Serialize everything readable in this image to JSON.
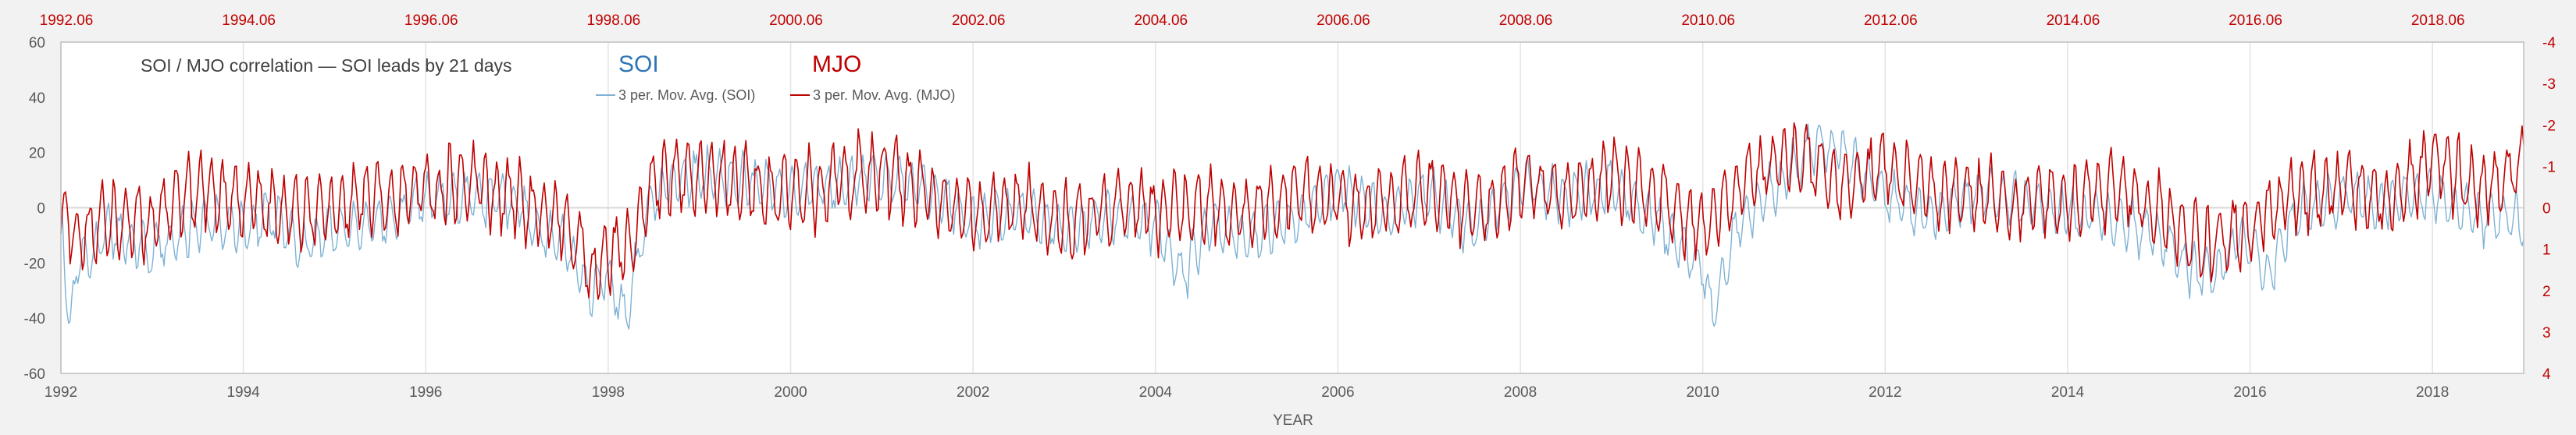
{
  "chart_data": {
    "type": "line",
    "title": "SOI / MJO correlation — SOI leads by 21 days",
    "xlabel": "YEAR",
    "x_range": [
      1992.0,
      2019.0
    ],
    "x_ticks": [
      "1992",
      "1994",
      "1996",
      "1998",
      "2000",
      "2002",
      "2004",
      "2006",
      "2008",
      "2010",
      "2012",
      "2014",
      "2016",
      "2018"
    ],
    "x_top_ticks": [
      "1992.06",
      "1994.06",
      "1996.06",
      "1998.06",
      "2000.06",
      "2002.06",
      "2004.06",
      "2006.06",
      "2008.06",
      "2010.06",
      "2012.06",
      "2014.06",
      "2016.06",
      "2018.06"
    ],
    "y_left": {
      "range": [
        -60,
        60
      ],
      "ticks": [
        "60",
        "40",
        "20",
        "0",
        "-20",
        "-40",
        "-60"
      ]
    },
    "y_right": {
      "range": [
        -4,
        4
      ],
      "inverted": true,
      "ticks": [
        "-4",
        "-3",
        "-2",
        "-1",
        "0",
        "1",
        "2",
        "3",
        "4"
      ]
    },
    "grid": "vertical",
    "legend": [
      {
        "label": "SOI",
        "series_label": "3 per. Mov. Avg. (SOI)",
        "color": "#2e75b6"
      },
      {
        "label": "MJO",
        "series_label": "3 per. Mov. Avg. (MJO)",
        "color": "#c00000"
      }
    ],
    "series": [
      {
        "name": "3 per. Mov. Avg. (SOI)",
        "axis": "left",
        "color": "#7fb2d4",
        "x": [
          1992.0,
          1992.1,
          1992.2,
          1992.3,
          1992.5,
          1992.7,
          1993.0,
          1993.3,
          1993.6,
          1994.0,
          1994.3,
          1994.6,
          1995.0,
          1995.5,
          1996.0,
          1996.5,
          1997.0,
          1997.2,
          1997.5,
          1997.8,
          1998.0,
          1998.2,
          1998.4,
          1998.6,
          1999.0,
          1999.5,
          2000.0,
          2000.5,
          2001.0,
          2001.5,
          2002.0,
          2002.5,
          2003.0,
          2003.5,
          2004.0,
          2004.3,
          2004.6,
          2005.0,
          2005.5,
          2006.0,
          2006.5,
          2007.0,
          2007.5,
          2008.0,
          2008.5,
          2009.0,
          2009.5,
          2010.0,
          2010.1,
          2010.4,
          2010.8,
          2011.0,
          2011.3,
          2011.6,
          2012.0,
          2012.5,
          2013.0,
          2013.5,
          2014.0,
          2014.5,
          2015.0,
          2015.3,
          2015.6,
          2015.9,
          2016.2,
          2016.5,
          2017.0,
          2017.5,
          2018.0,
          2018.5,
          2019.0
        ],
        "values": [
          -5,
          -45,
          -15,
          -18,
          -8,
          -12,
          -15,
          -10,
          -5,
          -8,
          -2,
          -14,
          -8,
          -5,
          3,
          5,
          2,
          -8,
          -12,
          -30,
          -25,
          -40,
          -5,
          8,
          12,
          10,
          5,
          8,
          12,
          6,
          -5,
          -2,
          -8,
          -3,
          -6,
          -25,
          -5,
          -10,
          -5,
          8,
          -3,
          6,
          -8,
          10,
          4,
          8,
          -5,
          -20,
          -40,
          -5,
          8,
          15,
          25,
          18,
          5,
          -3,
          6,
          2,
          -2,
          -4,
          -10,
          -20,
          -25,
          -10,
          -25,
          -3,
          4,
          2,
          5,
          -2,
          -5
        ]
      },
      {
        "name": "3 per. Mov. Avg. (MJO)",
        "axis": "right",
        "color": "#c00000",
        "x": [
          1992.0,
          1992.2,
          1992.5,
          1993.0,
          1993.5,
          1994.0,
          1994.5,
          1995.0,
          1995.5,
          1996.0,
          1996.5,
          1997.0,
          1997.5,
          1997.8,
          1998.0,
          1998.3,
          1998.5,
          1999.0,
          1999.5,
          2000.0,
          2000.5,
          2001.0,
          2001.5,
          2002.0,
          2002.5,
          2003.0,
          2003.5,
          2004.0,
          2004.5,
          2005.0,
          2005.5,
          2006.0,
          2006.5,
          2007.0,
          2007.5,
          2008.0,
          2008.5,
          2009.0,
          2009.5,
          2010.0,
          2010.5,
          2011.0,
          2011.5,
          2012.0,
          2012.5,
          2013.0,
          2013.5,
          2014.0,
          2014.5,
          2015.0,
          2015.5,
          2016.0,
          2016.5,
          2017.0,
          2017.5,
          2018.0,
          2018.5,
          2019.0
        ],
        "values": [
          0.0,
          0.8,
          0.2,
          0.3,
          -0.5,
          -0.2,
          0.1,
          0.0,
          -0.3,
          -0.4,
          -0.6,
          -0.2,
          0.3,
          1.5,
          1.2,
          0.8,
          -0.6,
          -0.8,
          -0.5,
          -0.3,
          -0.6,
          -0.9,
          -0.4,
          0.2,
          -0.1,
          0.4,
          0.0,
          0.1,
          0.0,
          0.2,
          -0.3,
          -0.2,
          0.0,
          -0.5,
          0.2,
          -0.6,
          -0.3,
          -0.8,
          -0.2,
          0.5,
          -0.8,
          -1.2,
          -0.6,
          -1.0,
          -0.4,
          -0.3,
          0.0,
          -0.2,
          -0.5,
          0.1,
          1.0,
          0.5,
          -0.3,
          -0.5,
          -0.1,
          -1.2,
          -0.4,
          -1.0
        ]
      }
    ]
  }
}
